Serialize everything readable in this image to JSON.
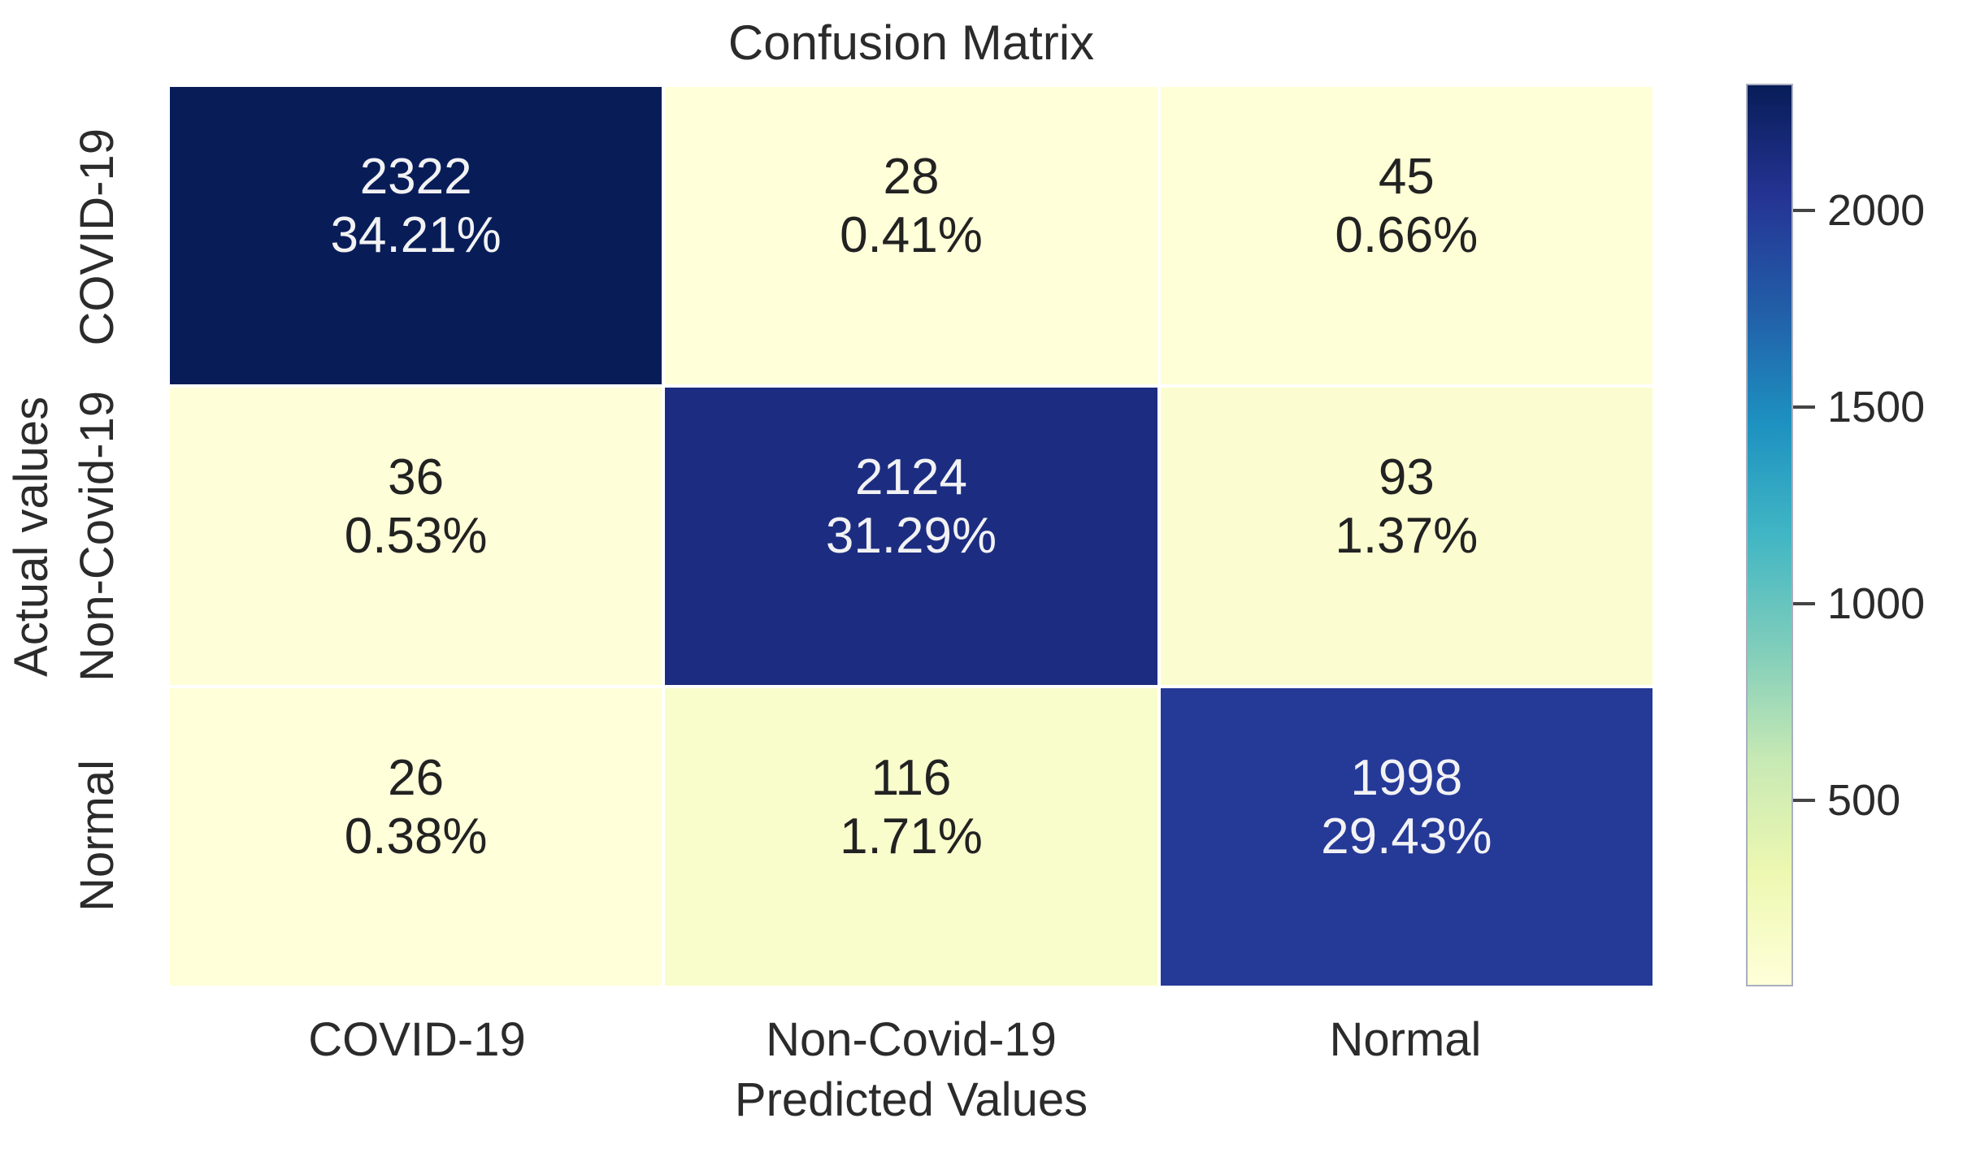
{
  "page": {
    "background": "#ffffff"
  },
  "chart_data": {
    "type": "heatmap",
    "title": "Confusion Matrix",
    "xlabel": "Predicted Values",
    "ylabel": "Actual values",
    "x_categories": [
      "COVID-19",
      "Non-Covid-19",
      "Normal"
    ],
    "y_categories": [
      "COVID-19",
      "Non-Covid-19",
      "Normal"
    ],
    "matrix": [
      [
        2322,
        28,
        45
      ],
      [
        36,
        2124,
        93
      ],
      [
        26,
        116,
        1998
      ]
    ],
    "percent_labels": [
      [
        "34.21%",
        "0.41%",
        "0.66%"
      ],
      [
        "0.53%",
        "31.29%",
        "1.37%"
      ],
      [
        "0.38%",
        "1.71%",
        "29.43%"
      ]
    ],
    "cell_label_format": "count over percent, two lines",
    "colorbar_ticks": [
      2000,
      1500,
      1000,
      500
    ],
    "colormap_name": "YlGnBu",
    "colormap_stops_low_to_high": [
      "#ffffd9",
      "#edf8b1",
      "#c7e9b4",
      "#7fcdbb",
      "#41b6c4",
      "#1d91c0",
      "#225ea8",
      "#253494",
      "#081d58"
    ],
    "legend_position": "right-colorbar",
    "grid": "thin white gridlines between cells"
  },
  "colors": {
    "background": "#ffffff",
    "text": "#2b2b2b",
    "annot_on_dark": "#f2f2f4",
    "annot_on_light": "#222222",
    "gridline": "#ffffff",
    "colorbar_outline": "#a9afbf",
    "tick_mark": "#444444"
  }
}
